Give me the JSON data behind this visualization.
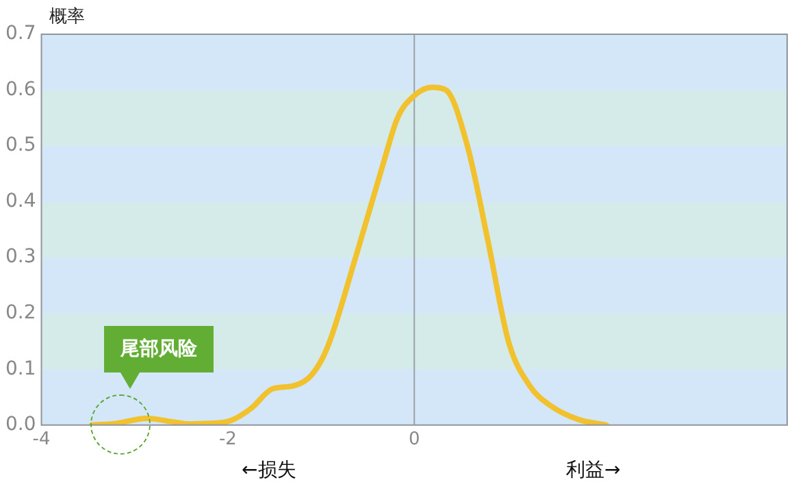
{
  "chart_data": {
    "type": "line",
    "ylabel": "概率",
    "x": [
      -3.46,
      -3.2,
      -2.87,
      -2.6,
      -2.42,
      -2.2,
      -1.97,
      -1.75,
      -1.52,
      -1.3,
      -1.1,
      -0.93,
      -0.63,
      -0.33,
      -0.18,
      0,
      0.19,
      0.34,
      0.57,
      0.79,
      1.01,
      1.24,
      1.46,
      1.76,
      2.06
    ],
    "series": [
      {
        "color": "#f2c12e",
        "values": [
          0,
          0.003,
          0.012,
          0.006,
          0.002,
          0.003,
          0.008,
          0.03,
          0.065,
          0.07,
          0.09,
          0.14,
          0.3,
          0.47,
          0.55,
          0.59,
          0.605,
          0.6,
          0.5,
          0.33,
          0.15,
          0.07,
          0.035,
          0.01,
          0
        ]
      }
    ],
    "xlim": [
      -4,
      4
    ],
    "xticks": [
      -4,
      -2,
      0
    ],
    "ylim": [
      0,
      0.7
    ],
    "yticks": [
      {
        "value": 0,
        "label": "0.0"
      },
      0.1,
      0.2,
      0.3,
      0.4,
      0.5,
      0.6,
      0.7
    ],
    "ref_lines": [
      {
        "axis": "x",
        "value": 0,
        "color": "#9aa0a6"
      }
    ],
    "annotations": [
      "尾部风险",
      "←损失",
      "利益→"
    ],
    "grid": false,
    "legend": false,
    "marker": "none",
    "line_style": "solid"
  }
}
